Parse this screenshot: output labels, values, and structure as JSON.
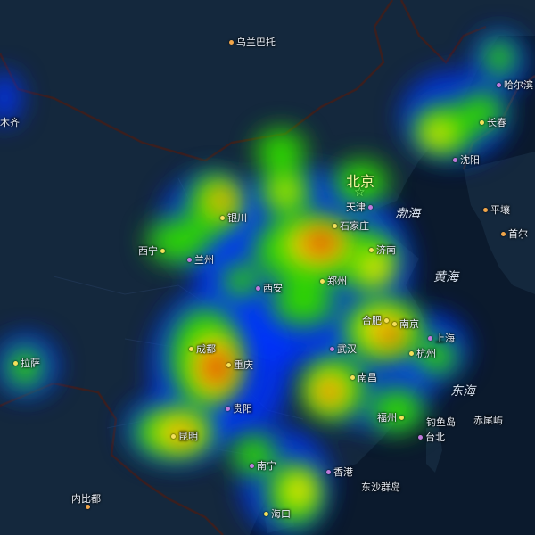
{
  "colors": {
    "ocean": "#0b1a2d",
    "land": "#14283d",
    "border": "#3a1f1f",
    "heat_low": "#0033ff",
    "heat_mid": "#2dd400",
    "heat_high": "#ffe600",
    "heat_peak": "#d83a00"
  },
  "icons": {
    "capital": "star-icon",
    "city": "dot-icon"
  },
  "capital": {
    "name": "北京"
  },
  "seas": {
    "bohai": "渤海",
    "yellow_sea": "黄海",
    "east_sea": "东海"
  },
  "cities": [
    {
      "id": "ulaanbaatar",
      "name": "乌兰巴托",
      "dot": "orange"
    },
    {
      "id": "harbin",
      "name": "哈尔滨",
      "dot": "purple"
    },
    {
      "id": "urumqi",
      "name": "木齐",
      "dot": "purple"
    },
    {
      "id": "changchun",
      "name": "长春",
      "dot": "yellow"
    },
    {
      "id": "shenyang",
      "name": "沈阳",
      "dot": "purple"
    },
    {
      "id": "tianjin",
      "name": "天津",
      "dot": "purple"
    },
    {
      "id": "pyongyang",
      "name": "平壤",
      "dot": "orange"
    },
    {
      "id": "seoul",
      "name": "首尔",
      "dot": "orange"
    },
    {
      "id": "yinchuan",
      "name": "银川",
      "dot": "yellow"
    },
    {
      "id": "shijiazhuang",
      "name": "石家庄",
      "dot": "yellow"
    },
    {
      "id": "xining",
      "name": "西宁",
      "dot": "yellow"
    },
    {
      "id": "lanzhou",
      "name": "兰州",
      "dot": "purple"
    },
    {
      "id": "jinan",
      "name": "济南",
      "dot": "yellow"
    },
    {
      "id": "xian",
      "name": "西安",
      "dot": "purple"
    },
    {
      "id": "zhengzhou",
      "name": "郑州",
      "dot": "yellow"
    },
    {
      "id": "hefei",
      "name": "合肥",
      "dot": "yellow"
    },
    {
      "id": "nanjing",
      "name": "南京",
      "dot": "yellow"
    },
    {
      "id": "shanghai",
      "name": "上海",
      "dot": "purple"
    },
    {
      "id": "chengdu",
      "name": "成都",
      "dot": "yellow"
    },
    {
      "id": "chongqing",
      "name": "重庆",
      "dot": "yellow"
    },
    {
      "id": "wuhan",
      "name": "武汉",
      "dot": "purple"
    },
    {
      "id": "hangzhou",
      "name": "杭州",
      "dot": "yellow"
    },
    {
      "id": "lhasa",
      "name": "拉萨",
      "dot": "yellow"
    },
    {
      "id": "nanchang",
      "name": "南昌",
      "dot": "yellow"
    },
    {
      "id": "guiyang",
      "name": "贵阳",
      "dot": "purple"
    },
    {
      "id": "fuzhou",
      "name": "福州",
      "dot": "yellow"
    },
    {
      "id": "diaoyu",
      "name": "钓鱼岛",
      "dot": "purple"
    },
    {
      "id": "naha",
      "name": "赤尾屿",
      "dot": "purple"
    },
    {
      "id": "kunming",
      "name": "昆明",
      "dot": "yellow"
    },
    {
      "id": "taipei",
      "name": "台北",
      "dot": "purple"
    },
    {
      "id": "nanning",
      "name": "南宁",
      "dot": "purple"
    },
    {
      "id": "hongkong",
      "name": "香港",
      "dot": "purple"
    },
    {
      "id": "dongsha",
      "name": "东沙群岛",
      "dot": "purple"
    },
    {
      "id": "naypyidaw",
      "name": "内比都",
      "dot": "orange"
    },
    {
      "id": "haikou",
      "name": "海口",
      "dot": "yellow"
    }
  ],
  "heatmap": {
    "scale": "relative intensity 0-1",
    "hotspots": [
      {
        "near": "北京/天津",
        "intensity": 0.55
      },
      {
        "near": "石家庄",
        "intensity": 1.0
      },
      {
        "near": "郑州",
        "intensity": 0.65
      },
      {
        "near": "合肥/南京",
        "intensity": 0.95
      },
      {
        "near": "成都/重庆",
        "intensity": 1.0
      },
      {
        "near": "银川",
        "intensity": 0.85
      },
      {
        "near": "南昌",
        "intensity": 0.9
      },
      {
        "near": "昆明",
        "intensity": 0.85
      },
      {
        "near": "长春",
        "intensity": 0.75
      },
      {
        "near": "哈尔滨",
        "intensity": 0.55
      },
      {
        "near": "福州",
        "intensity": 0.55
      },
      {
        "near": "南宁/海口",
        "intensity": 0.6
      },
      {
        "near": "拉萨",
        "intensity": 0.5
      }
    ]
  }
}
